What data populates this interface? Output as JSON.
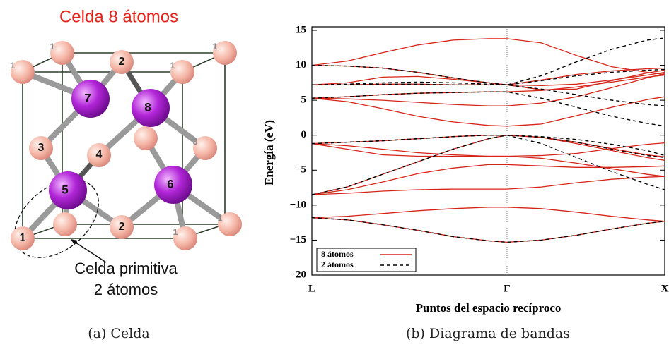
{
  "figure": {
    "cell_title": "Celda 8 átomos",
    "atom_labels": [
      "1",
      "2",
      "1",
      "1",
      "1",
      "3",
      "4",
      "3",
      "2",
      "1",
      "1",
      "1",
      "7",
      "8",
      "5",
      "6"
    ],
    "primitive_label": [
      "Celda primitiva",
      "2 átomos"
    ],
    "captions": [
      "(a) Celda",
      "(b) Diagrama de bandas"
    ]
  },
  "chart_data": {
    "type": "line",
    "xlabel": "Puntos del espacio recíproco",
    "ylabel": "Energía (eV)",
    "x": [
      0,
      0.1,
      0.2,
      0.3,
      0.4,
      0.5,
      0.553,
      0.65,
      0.75,
      0.85,
      0.95,
      1
    ],
    "xlim": [
      0,
      1
    ],
    "xticks": [
      {
        "value": 0,
        "label": "L"
      },
      {
        "value": 0.553,
        "label": "Γ"
      },
      {
        "value": 1,
        "label": "X"
      }
    ],
    "ylim": [
      -20,
      15
    ],
    "yticks": [
      {
        "value": -20,
        "label": "−20"
      },
      {
        "value": -15,
        "label": "−15"
      },
      {
        "value": -10,
        "label": "−10"
      },
      {
        "value": -5,
        "label": "−5"
      },
      0,
      5,
      10,
      15
    ],
    "legend": "lower left",
    "series": [
      {
        "name": "8 átomos",
        "color": "#d62418",
        "dash": false,
        "values": [
          [
            -11.8,
            -12.1,
            -12.8,
            -13.6,
            -14.5,
            -15.1,
            -15.3,
            -15.0,
            -14.3,
            -13.4,
            -12.6,
            -12.3
          ],
          [
            -11.8,
            -11.6,
            -11.2,
            -10.8,
            -10.5,
            -10.3,
            -10.3,
            -10.5,
            -11.0,
            -11.6,
            -12.1,
            -12.3
          ],
          [
            -8.5,
            -7.4,
            -5.6,
            -3.8,
            -2.0,
            -0.5,
            0,
            -0.3,
            -1.0,
            -1.9,
            -2.8,
            -3.1
          ],
          [
            -8.5,
            -8.3,
            -8.0,
            -7.8,
            -7.7,
            -7.7,
            -7.7,
            -7.4,
            -6.8,
            -6.3,
            -6.0,
            -5.9
          ],
          [
            -8.5,
            -7.8,
            -6.7,
            -5.5,
            -4.7,
            -4.2,
            -4.2,
            -4.4,
            -4.6,
            -4.6,
            -4.5,
            -4.4
          ],
          [
            -1.2,
            -2.0,
            -2.8,
            -3.0,
            -3.0,
            -3.0,
            -3.0,
            -2.9,
            -2.6,
            -1.9,
            -1.3,
            -1.1
          ],
          [
            -1.2,
            -1.5,
            -2.0,
            -2.5,
            -2.8,
            -3.0,
            -3.0,
            -3.3,
            -4.0,
            -4.8,
            -5.6,
            -5.9
          ],
          [
            -1.2,
            -1.0,
            -0.8,
            -0.5,
            -0.2,
            0,
            0,
            -0.3,
            -1.2,
            -2.2,
            -3.2,
            -3.6
          ],
          [
            5.3,
            4.8,
            3.8,
            2.7,
            1.9,
            1.4,
            1.3,
            1.6,
            2.8,
            4.0,
            5.1,
            5.5
          ],
          [
            5.3,
            5.2,
            5.0,
            4.7,
            4.4,
            4.2,
            4.2,
            4.6,
            5.5,
            6.8,
            8.2,
            8.8
          ],
          [
            5.3,
            5.5,
            5.8,
            6.0,
            6.1,
            6.2,
            6.2,
            6.4,
            6.9,
            7.6,
            8.3,
            8.6
          ],
          [
            7.2,
            7.2,
            7.3,
            7.3,
            7.2,
            7.2,
            7.2,
            7.1,
            7.3,
            7.9,
            8.6,
            9.0
          ],
          [
            7.2,
            7.5,
            8.3,
            8.4,
            8.0,
            7.5,
            7.2,
            6.5,
            6.6,
            7.8,
            8.9,
            9.3
          ],
          [
            10.0,
            10.6,
            11.8,
            12.9,
            13.6,
            13.8,
            13.8,
            13.2,
            11.4,
            9.8,
            9.0,
            8.7
          ],
          [
            10.0,
            9.9,
            9.6,
            9.0,
            8.2,
            7.5,
            7.2,
            7.9,
            8.7,
            9.2,
            9.5,
            9.6
          ]
        ]
      },
      {
        "name": "2 átomos",
        "color": "#000000",
        "dash": true,
        "values": [
          [
            -11.8,
            -12.1,
            -12.8,
            -13.6,
            -14.5,
            -15.1,
            -15.3,
            -15.0,
            -14.3,
            -13.4,
            -12.6,
            -12.3
          ],
          [
            -8.5,
            -7.4,
            -5.6,
            -3.8,
            -2.0,
            -0.5,
            0,
            -1.2,
            -3.2,
            -5.2,
            -7.0,
            -7.8
          ],
          [
            -1.2,
            -1.0,
            -0.8,
            -0.5,
            -0.2,
            0,
            0,
            -0.3,
            -1.0,
            -2.0,
            -2.9,
            -3.2
          ],
          [
            -1.2,
            -1.0,
            -0.8,
            -0.5,
            -0.2,
            0,
            0,
            -0.2,
            -0.6,
            -1.3,
            -2.2,
            -2.9
          ],
          [
            5.3,
            5.5,
            5.8,
            6.0,
            6.1,
            6.2,
            6.2,
            5.3,
            4.0,
            2.7,
            1.7,
            1.3
          ],
          [
            7.2,
            7.2,
            7.3,
            7.3,
            7.2,
            7.2,
            7.2,
            6.6,
            5.8,
            5.0,
            4.4,
            4.2
          ],
          [
            7.2,
            7.3,
            7.5,
            7.6,
            7.5,
            7.3,
            7.2,
            7.8,
            8.5,
            9.0,
            9.3,
            9.4
          ],
          [
            10.0,
            9.9,
            9.6,
            9.0,
            8.2,
            7.5,
            7.2,
            8.5,
            10.5,
            12.3,
            13.6,
            13.9
          ]
        ]
      }
    ]
  }
}
